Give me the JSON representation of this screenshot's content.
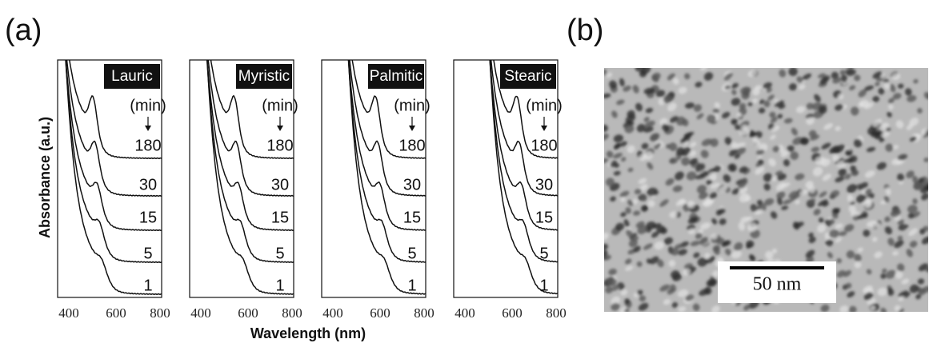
{
  "panel_labels": [
    "(a)",
    "(b)"
  ],
  "spectra": {
    "y_label": "Absorbance (a.u.)",
    "x_label": "Wavelength (nm)",
    "time_unit": "(min)",
    "x_ticks": [
      400,
      600,
      800
    ],
    "times": [
      180,
      30,
      15,
      5,
      1
    ],
    "panels": [
      "Lauric",
      "Myristic",
      "Palmitic",
      "Stearic"
    ]
  },
  "image": {
    "scale_bar": "50 nm"
  }
}
